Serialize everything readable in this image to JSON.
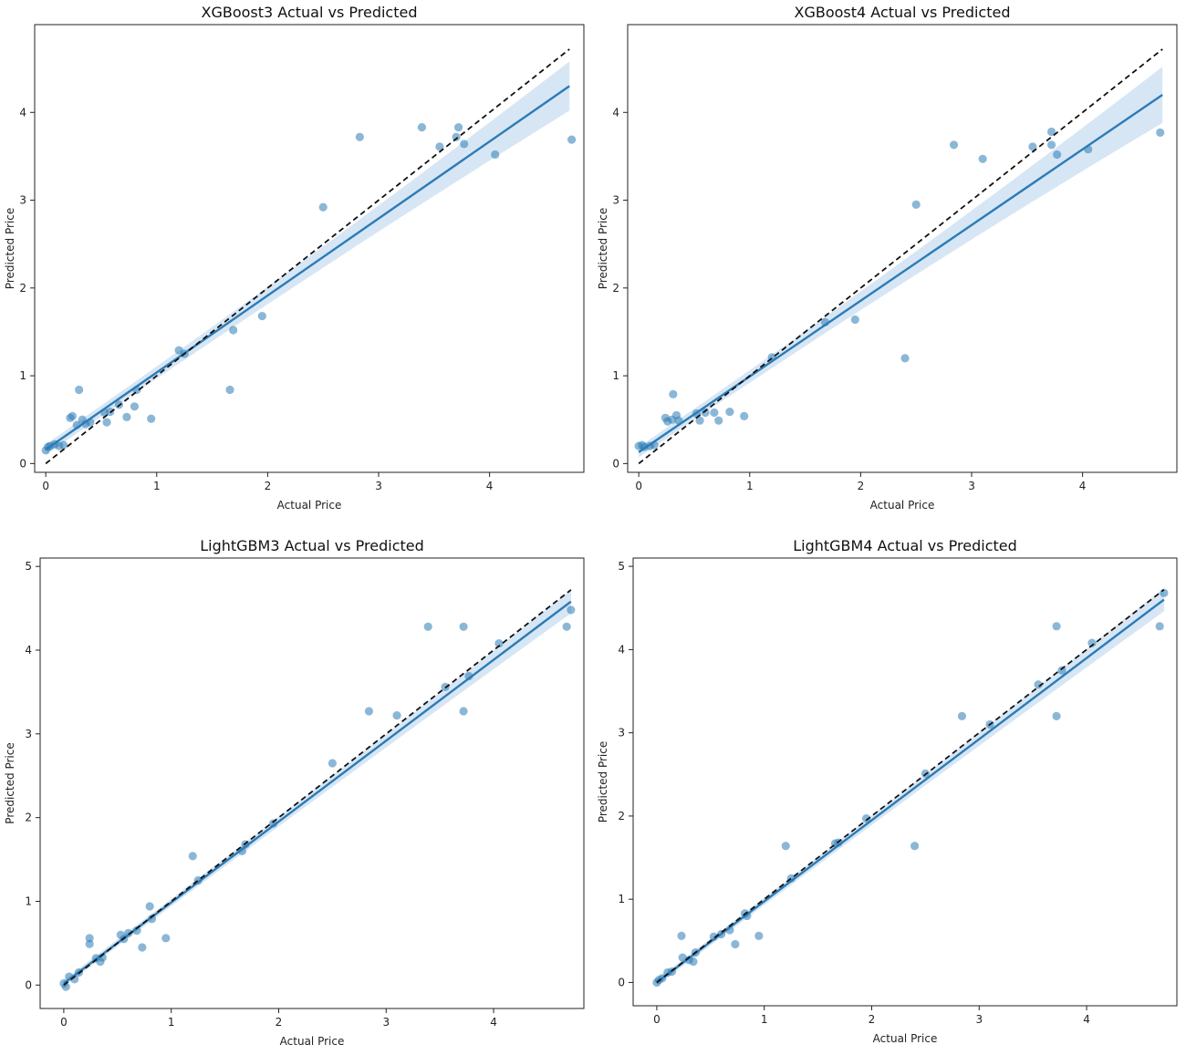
{
  "chart_data": [
    {
      "type": "scatter",
      "title": "XGBoost3 Actual vs Predicted",
      "xlabel": "Actual Price",
      "ylabel": "Predicted Price",
      "xlim": [
        -0.1,
        4.85
      ],
      "ylim": [
        -0.1,
        5.0
      ],
      "xticks": [
        0,
        1,
        2,
        3,
        4
      ],
      "yticks": [
        0,
        1,
        2,
        3,
        4
      ],
      "reference_line": {
        "from": [
          0,
          0
        ],
        "to": [
          4.72,
          4.72
        ],
        "style": "dashed",
        "color": "#111111"
      },
      "fit_line": {
        "from": [
          0,
          0.16
        ],
        "to": [
          4.72,
          4.3
        ],
        "band_halfwidth_start": 0.06,
        "band_halfwidth_end": 0.28,
        "color": "#2c7bb6"
      },
      "points": [
        [
          0.0,
          0.15
        ],
        [
          0.02,
          0.19
        ],
        [
          0.04,
          0.2
        ],
        [
          0.08,
          0.22
        ],
        [
          0.12,
          0.2
        ],
        [
          0.16,
          0.21
        ],
        [
          0.22,
          0.52
        ],
        [
          0.24,
          0.54
        ],
        [
          0.28,
          0.44
        ],
        [
          0.3,
          0.84
        ],
        [
          0.33,
          0.5
        ],
        [
          0.36,
          0.45
        ],
        [
          0.4,
          0.47
        ],
        [
          0.53,
          0.58
        ],
        [
          0.55,
          0.47
        ],
        [
          0.58,
          0.59
        ],
        [
          0.66,
          0.67
        ],
        [
          0.73,
          0.53
        ],
        [
          0.8,
          0.65
        ],
        [
          0.82,
          0.84
        ],
        [
          0.95,
          0.51
        ],
        [
          1.2,
          1.29
        ],
        [
          1.25,
          1.25
        ],
        [
          1.66,
          0.84
        ],
        [
          1.69,
          1.52
        ],
        [
          1.95,
          1.68
        ],
        [
          2.5,
          2.92
        ],
        [
          2.83,
          3.72
        ],
        [
          3.39,
          3.83
        ],
        [
          3.55,
          3.61
        ],
        [
          3.72,
          3.83
        ],
        [
          3.7,
          3.72
        ],
        [
          3.77,
          3.64
        ],
        [
          4.05,
          3.52
        ],
        [
          4.74,
          3.69
        ]
      ]
    },
    {
      "type": "scatter",
      "title": "XGBoost4 Actual vs Predicted",
      "xlabel": "Actual Price",
      "ylabel": "Predicted Price",
      "xlim": [
        -0.1,
        4.85
      ],
      "ylim": [
        -0.1,
        5.0
      ],
      "xticks": [
        0,
        1,
        2,
        3,
        4
      ],
      "yticks": [
        0,
        1,
        2,
        3,
        4
      ],
      "reference_line": {
        "from": [
          0,
          0
        ],
        "to": [
          4.72,
          4.72
        ],
        "style": "dashed",
        "color": "#111111"
      },
      "fit_line": {
        "from": [
          0,
          0.13
        ],
        "to": [
          4.72,
          4.2
        ],
        "band_halfwidth_start": 0.06,
        "band_halfwidth_end": 0.32,
        "color": "#2c7bb6"
      },
      "points": [
        [
          0.0,
          0.2
        ],
        [
          0.03,
          0.21
        ],
        [
          0.05,
          0.19
        ],
        [
          0.1,
          0.2
        ],
        [
          0.14,
          0.21
        ],
        [
          0.24,
          0.52
        ],
        [
          0.26,
          0.48
        ],
        [
          0.3,
          0.5
        ],
        [
          0.31,
          0.79
        ],
        [
          0.34,
          0.55
        ],
        [
          0.36,
          0.49
        ],
        [
          0.52,
          0.57
        ],
        [
          0.55,
          0.49
        ],
        [
          0.6,
          0.58
        ],
        [
          0.68,
          0.58
        ],
        [
          0.72,
          0.49
        ],
        [
          0.82,
          0.59
        ],
        [
          0.95,
          0.54
        ],
        [
          1.2,
          1.21
        ],
        [
          1.68,
          1.61
        ],
        [
          1.95,
          1.64
        ],
        [
          2.4,
          1.2
        ],
        [
          2.5,
          2.95
        ],
        [
          2.84,
          3.63
        ],
        [
          3.1,
          3.47
        ],
        [
          3.55,
          3.61
        ],
        [
          3.72,
          3.78
        ],
        [
          3.72,
          3.63
        ],
        [
          3.77,
          3.52
        ],
        [
          4.05,
          3.58
        ],
        [
          4.7,
          3.77
        ]
      ]
    },
    {
      "type": "scatter",
      "title": "LightGBM3 Actual vs Predicted",
      "xlabel": "Actual Price",
      "ylabel": "Predicted Price",
      "xlim": [
        -0.22,
        4.84
      ],
      "ylim": [
        -0.28,
        5.1
      ],
      "xticks": [
        0,
        1,
        2,
        3,
        4
      ],
      "yticks": [
        0,
        1,
        2,
        3,
        4,
        5
      ],
      "reference_line": {
        "from": [
          0,
          0
        ],
        "to": [
          4.72,
          4.72
        ],
        "style": "dashed",
        "color": "#111111"
      },
      "fit_line": {
        "from": [
          0,
          0.02
        ],
        "to": [
          4.72,
          4.58
        ],
        "band_halfwidth_start": 0.04,
        "band_halfwidth_end": 0.14,
        "color": "#2c7bb6"
      },
      "points": [
        [
          0.0,
          0.02
        ],
        [
          0.02,
          -0.02
        ],
        [
          0.05,
          0.1
        ],
        [
          0.1,
          0.07
        ],
        [
          0.14,
          0.15
        ],
        [
          0.24,
          0.56
        ],
        [
          0.24,
          0.49
        ],
        [
          0.3,
          0.32
        ],
        [
          0.34,
          0.28
        ],
        [
          0.36,
          0.33
        ],
        [
          0.53,
          0.6
        ],
        [
          0.56,
          0.55
        ],
        [
          0.6,
          0.62
        ],
        [
          0.68,
          0.65
        ],
        [
          0.73,
          0.45
        ],
        [
          0.8,
          0.94
        ],
        [
          0.82,
          0.79
        ],
        [
          0.95,
          0.56
        ],
        [
          1.2,
          1.54
        ],
        [
          1.25,
          1.25
        ],
        [
          1.66,
          1.6
        ],
        [
          1.69,
          1.68
        ],
        [
          1.95,
          1.93
        ],
        [
          2.5,
          2.65
        ],
        [
          2.84,
          3.27
        ],
        [
          3.1,
          3.22
        ],
        [
          3.39,
          4.28
        ],
        [
          3.55,
          3.56
        ],
        [
          3.72,
          4.28
        ],
        [
          3.72,
          3.27
        ],
        [
          3.77,
          3.69
        ],
        [
          4.05,
          4.08
        ],
        [
          4.68,
          4.28
        ],
        [
          4.72,
          4.48
        ]
      ]
    },
    {
      "type": "scatter",
      "title": "LightGBM4 Actual vs Predicted",
      "xlabel": "Actual Price",
      "ylabel": "Predicted Price",
      "xlim": [
        -0.22,
        4.84
      ],
      "ylim": [
        -0.28,
        5.1
      ],
      "xticks": [
        0,
        1,
        2,
        3,
        4
      ],
      "yticks": [
        0,
        1,
        2,
        3,
        4,
        5
      ],
      "reference_line": {
        "from": [
          0,
          0
        ],
        "to": [
          4.72,
          4.72
        ],
        "style": "dashed",
        "color": "#111111"
      },
      "fit_line": {
        "from": [
          0,
          0.0
        ],
        "to": [
          4.72,
          4.6
        ],
        "band_halfwidth_start": 0.04,
        "band_halfwidth_end": 0.14,
        "color": "#2c7bb6"
      },
      "points": [
        [
          0.0,
          0.0
        ],
        [
          0.02,
          0.03
        ],
        [
          0.05,
          0.05
        ],
        [
          0.1,
          0.12
        ],
        [
          0.14,
          0.13
        ],
        [
          0.23,
          0.56
        ],
        [
          0.24,
          0.3
        ],
        [
          0.3,
          0.27
        ],
        [
          0.34,
          0.25
        ],
        [
          0.36,
          0.36
        ],
        [
          0.53,
          0.55
        ],
        [
          0.6,
          0.58
        ],
        [
          0.68,
          0.63
        ],
        [
          0.73,
          0.46
        ],
        [
          0.82,
          0.83
        ],
        [
          0.84,
          0.8
        ],
        [
          0.95,
          0.56
        ],
        [
          1.2,
          1.64
        ],
        [
          1.25,
          1.25
        ],
        [
          1.66,
          1.67
        ],
        [
          1.69,
          1.68
        ],
        [
          1.95,
          1.97
        ],
        [
          2.4,
          1.64
        ],
        [
          2.5,
          2.51
        ],
        [
          2.84,
          3.2
        ],
        [
          3.1,
          3.1
        ],
        [
          3.55,
          3.58
        ],
        [
          3.72,
          4.28
        ],
        [
          3.72,
          3.2
        ],
        [
          3.77,
          3.75
        ],
        [
          4.05,
          4.08
        ],
        [
          4.68,
          4.28
        ],
        [
          4.72,
          4.68
        ]
      ]
    }
  ],
  "style": {
    "point_color": "#2c7bb6",
    "line_color": "#2c7bb6",
    "band_color": "#c6dbef",
    "reference_color": "#111111"
  }
}
